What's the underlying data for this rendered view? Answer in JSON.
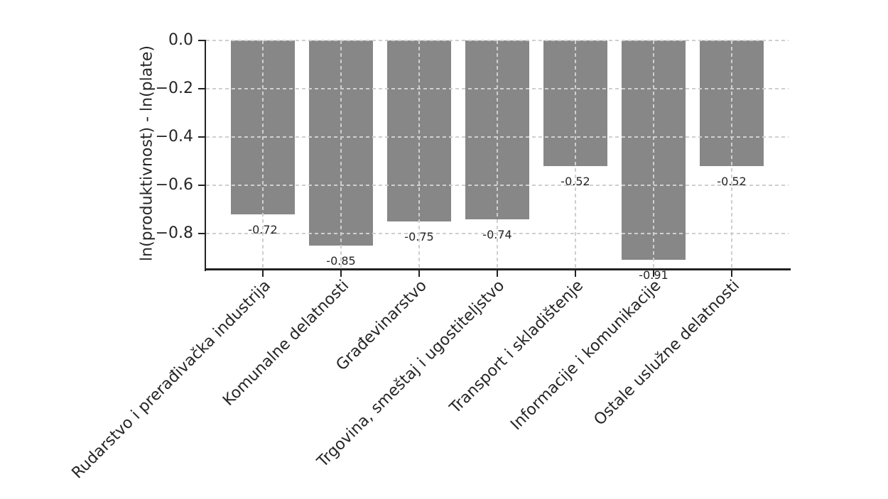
{
  "figure": {
    "background": "#ffffff"
  },
  "chart_data": {
    "type": "bar",
    "title": "",
    "xlabel": "",
    "ylabel": "ln(produktivnost) - ln(plate)",
    "categories": [
      "Rudarstvo i prerađivačka industrija",
      "Komunalne delatnosti",
      "Građevinarstvo",
      "Trgovina, smeštaj i ugostiteljstvo",
      "Transport i skladištenje",
      "Informacije i komunikacije",
      "Ostale uslužne delatnosti"
    ],
    "values": [
      -0.72,
      -0.85,
      -0.75,
      -0.74,
      -0.52,
      -0.91,
      -0.52
    ],
    "bar_labels": [
      "-0.72",
      "-0.85",
      "-0.75",
      "-0.74",
      "-0.52",
      "-0.91",
      "-0.52"
    ],
    "yticks": [
      0.0,
      -0.2,
      -0.4,
      -0.6,
      -0.8
    ],
    "ytick_labels": [
      "0.0",
      "−0.2",
      "−0.4",
      "−0.6",
      "−0.8"
    ],
    "ylim": [
      -0.947,
      0.0
    ],
    "grid": true,
    "grid_style": "dashed",
    "legend": null,
    "xtick_rotation_deg": 45,
    "colors": {
      "bar": "#878787",
      "grid": "#cfcfcf",
      "axis": "#222222",
      "text": "#262626"
    }
  }
}
